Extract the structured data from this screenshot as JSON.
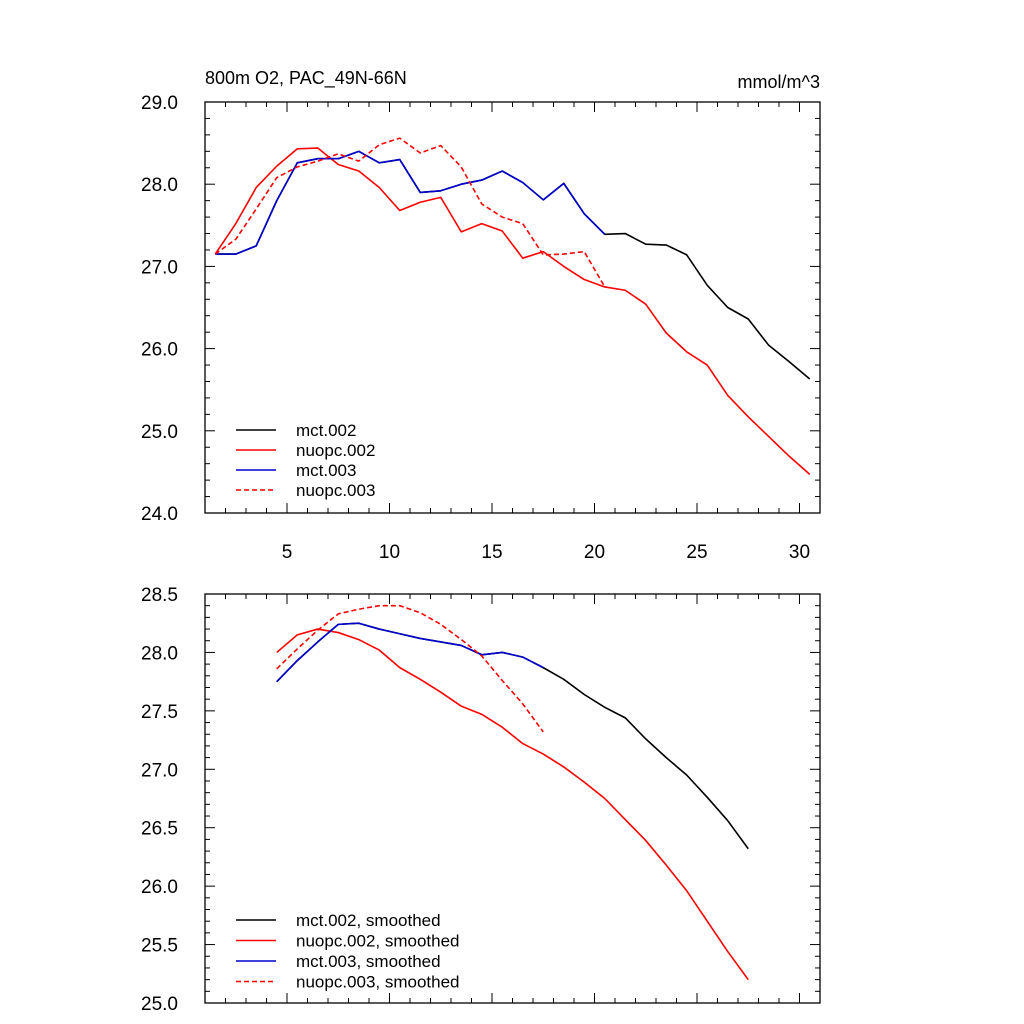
{
  "chart_data": [
    {
      "type": "line",
      "title": "800m O2, PAC_49N-66N",
      "units": "mmol/m^3",
      "xlim": [
        1,
        31
      ],
      "ylim": [
        24.0,
        29.0
      ],
      "x_ticks": [
        5,
        10,
        15,
        20,
        25,
        30
      ],
      "x_tick_labels": [
        "5",
        "10",
        "15",
        "20",
        "25",
        "30"
      ],
      "y_ticks": [
        24,
        25,
        26,
        27,
        28,
        29
      ],
      "y_tick_labels": [
        "24.0",
        "25.0",
        "26.0",
        "27.0",
        "28.0",
        "29.0"
      ],
      "legend_position": "bottom-left",
      "series": [
        {
          "name": "mct.002",
          "color": "#000000",
          "dash": "solid",
          "x": [
            1.5,
            2.5,
            3.5,
            4.5,
            5.5,
            6.5,
            7.5,
            8.5,
            9.5,
            10.5,
            11.5,
            12.5,
            13.5,
            14.5,
            15.5,
            16.5,
            17.5,
            18.5,
            19.5,
            20.5,
            21.5,
            22.5,
            23.5,
            24.5,
            25.5,
            26.5,
            27.5,
            28.5,
            29.5,
            30.5
          ],
          "y": [
            27.15,
            27.15,
            27.25,
            27.8,
            28.26,
            28.31,
            28.31,
            28.4,
            28.26,
            28.3,
            27.9,
            27.92,
            28.0,
            28.05,
            28.16,
            28.02,
            27.81,
            28.01,
            27.64,
            27.39,
            27.4,
            27.27,
            27.26,
            27.14,
            26.77,
            26.5,
            26.36,
            26.04,
            25.84,
            25.63
          ]
        },
        {
          "name": "nuopc.002",
          "color": "#ff0000",
          "dash": "solid",
          "x": [
            1.5,
            2.5,
            3.5,
            4.5,
            5.5,
            6.5,
            7.5,
            8.5,
            9.5,
            10.5,
            11.5,
            12.5,
            13.5,
            14.5,
            15.5,
            16.5,
            17.5,
            18.5,
            19.5,
            20.5,
            21.5,
            22.5,
            23.5,
            24.5,
            25.5,
            26.5,
            27.5,
            28.5,
            29.5,
            30.5
          ],
          "y": [
            27.15,
            27.52,
            27.96,
            28.22,
            28.43,
            28.44,
            28.24,
            28.16,
            27.96,
            27.68,
            27.78,
            27.84,
            27.42,
            27.52,
            27.43,
            27.1,
            27.18,
            27.0,
            26.84,
            26.75,
            26.71,
            26.54,
            26.19,
            25.96,
            25.8,
            25.43,
            25.17,
            24.93,
            24.69,
            24.47
          ]
        },
        {
          "name": "mct.003",
          "color": "#0000cd",
          "dash": "solid",
          "x": [
            1.5,
            2.5,
            3.5,
            4.5,
            5.5,
            6.5,
            7.5,
            8.5,
            9.5,
            10.5,
            11.5,
            12.5,
            13.5,
            14.5,
            15.5,
            16.5,
            17.5,
            18.5,
            19.5,
            20.5
          ],
          "y": [
            27.15,
            27.15,
            27.25,
            27.8,
            28.26,
            28.31,
            28.31,
            28.4,
            28.26,
            28.3,
            27.9,
            27.92,
            28.0,
            28.05,
            28.16,
            28.02,
            27.81,
            28.01,
            27.64,
            27.39
          ]
        },
        {
          "name": "nuopc.003",
          "color": "#ff0000",
          "dash": "dashed",
          "x": [
            1.5,
            2.5,
            3.5,
            4.5,
            5.5,
            6.5,
            7.5,
            8.5,
            9.5,
            10.5,
            11.5,
            12.5,
            13.5,
            14.5,
            15.5,
            16.5,
            17.5,
            18.5,
            19.5,
            20.5
          ],
          "y": [
            27.15,
            27.33,
            27.7,
            28.08,
            28.21,
            28.28,
            28.37,
            28.28,
            28.48,
            28.56,
            28.38,
            28.47,
            28.21,
            27.76,
            27.6,
            27.52,
            27.14,
            27.15,
            27.18,
            26.75
          ]
        }
      ]
    },
    {
      "type": "line",
      "title": "",
      "xlim": [
        1,
        31
      ],
      "ylim": [
        25.0,
        28.5
      ],
      "x_ticks": [
        5,
        10,
        15,
        20,
        25,
        30
      ],
      "x_tick_labels": [],
      "y_ticks": [
        25.0,
        25.5,
        26.0,
        26.5,
        27.0,
        27.5,
        28.0,
        28.5
      ],
      "y_tick_labels": [
        "25.0",
        "25.5",
        "26.0",
        "26.5",
        "27.0",
        "27.5",
        "28.0",
        "28.5"
      ],
      "legend_position": "bottom-left",
      "series": [
        {
          "name": "mct.002, smoothed",
          "color": "#000000",
          "dash": "solid",
          "x": [
            4.5,
            5.5,
            6.5,
            7.5,
            8.5,
            9.5,
            10.5,
            11.5,
            12.5,
            13.5,
            14.5,
            15.5,
            16.5,
            17.5,
            18.5,
            19.5,
            20.5,
            21.5,
            22.5,
            23.5,
            24.5,
            25.5,
            26.5,
            27.5
          ],
          "y": [
            27.75,
            27.93,
            28.09,
            28.24,
            28.25,
            28.2,
            28.16,
            28.12,
            28.09,
            28.06,
            27.98,
            28.0,
            27.96,
            27.87,
            27.77,
            27.64,
            27.53,
            27.44,
            27.26,
            27.1,
            26.95,
            26.76,
            26.56,
            26.32
          ]
        },
        {
          "name": "nuopc.002, smoothed",
          "color": "#ff0000",
          "dash": "solid",
          "x": [
            4.5,
            5.5,
            6.5,
            7.5,
            8.5,
            9.5,
            10.5,
            11.5,
            12.5,
            13.5,
            14.5,
            15.5,
            16.5,
            17.5,
            18.5,
            19.5,
            20.5,
            21.5,
            22.5,
            23.5,
            24.5,
            25.5,
            26.5,
            27.5
          ],
          "y": [
            28.0,
            28.15,
            28.2,
            28.17,
            28.11,
            28.02,
            27.87,
            27.77,
            27.66,
            27.54,
            27.47,
            27.36,
            27.22,
            27.13,
            27.02,
            26.89,
            26.75,
            26.57,
            26.39,
            26.18,
            25.96,
            25.7,
            25.44,
            25.2
          ]
        },
        {
          "name": "mct.003, smoothed",
          "color": "#0000cd",
          "dash": "solid",
          "x": [
            4.5,
            5.5,
            6.5,
            7.5,
            8.5,
            9.5,
            10.5,
            11.5,
            12.5,
            13.5,
            14.5,
            15.5,
            16.5,
            17.5
          ],
          "y": [
            27.75,
            27.93,
            28.09,
            28.24,
            28.25,
            28.2,
            28.16,
            28.12,
            28.09,
            28.06,
            27.98,
            28.0,
            27.96,
            27.87
          ]
        },
        {
          "name": "nuopc.003, smoothed",
          "color": "#ff0000",
          "dash": "dashed",
          "x": [
            4.5,
            5.5,
            6.5,
            7.5,
            8.5,
            9.5,
            10.5,
            11.5,
            12.5,
            13.5,
            14.5,
            15.5,
            16.5,
            17.5
          ],
          "y": [
            27.86,
            28.03,
            28.19,
            28.33,
            28.37,
            28.4,
            28.4,
            28.34,
            28.24,
            28.11,
            27.97,
            27.76,
            27.56,
            27.32
          ]
        }
      ]
    }
  ]
}
